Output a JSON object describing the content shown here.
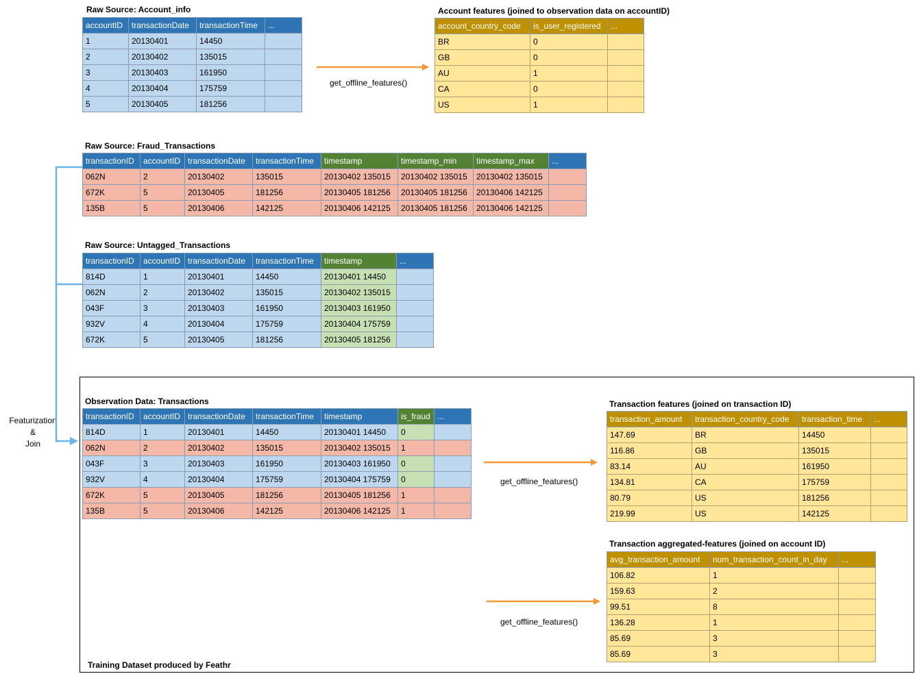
{
  "account_info": {
    "title": "Raw Source: Account_info",
    "headers": [
      "accountID",
      "transactionDate",
      "transactionTime",
      "..."
    ],
    "rows": [
      [
        "1",
        "20130401",
        "14450",
        ""
      ],
      [
        "2",
        "20130402",
        "135015",
        ""
      ],
      [
        "3",
        "20130403",
        "161950",
        ""
      ],
      [
        "4",
        "20130404",
        "175759",
        ""
      ],
      [
        "5",
        "20130405",
        "181256",
        ""
      ]
    ]
  },
  "account_features": {
    "title": "Account features (joined to observation data on accountID)",
    "headers": [
      "account_country_code",
      "is_user_registered",
      "..."
    ],
    "rows": [
      [
        "BR",
        "0",
        ""
      ],
      [
        "GB",
        "0",
        ""
      ],
      [
        "AU",
        "1",
        ""
      ],
      [
        "CA",
        "0",
        ""
      ],
      [
        "US",
        "1",
        ""
      ]
    ]
  },
  "fraud_transactions": {
    "title": "Raw Source: Fraud_Transactions",
    "headers": [
      "transactionID",
      "accountID",
      "transactionDate",
      "transactionTime",
      "timestamp",
      "timestamp_min",
      "timestamp_max",
      "..."
    ],
    "rows": [
      [
        "062N",
        "2",
        "20130402",
        "135015",
        "20130402 135015",
        "20130402 135015",
        "20130402 135015",
        ""
      ],
      [
        "672K",
        "5",
        "20130405",
        "181256",
        "20130405 181256",
        "20130405 181256",
        "20130406 142125",
        ""
      ],
      [
        "135B",
        "5",
        "20130406",
        "142125",
        "20130406 142125",
        "20130405 181256",
        "20130406 142125",
        ""
      ]
    ]
  },
  "untagged_transactions": {
    "title": "Raw Source: Untagged_Transactions",
    "headers": [
      "transactionID",
      "accountID",
      "transactionDate",
      "transactionTime",
      "timestamp",
      "..."
    ],
    "rows": [
      [
        "814D",
        "1",
        "20130401",
        "14450",
        "20130401 14450",
        ""
      ],
      [
        "062N",
        "2",
        "20130402",
        "135015",
        "20130402 135015",
        ""
      ],
      [
        "043F",
        "3",
        "20130403",
        "161950",
        "20130403 161950",
        ""
      ],
      [
        "932V",
        "4",
        "20130404",
        "175759",
        "20130404 175759",
        ""
      ],
      [
        "672K",
        "5",
        "20130405",
        "181256",
        "20130405 181256",
        ""
      ]
    ]
  },
  "observation": {
    "title": "Observation Data: Transactions",
    "headers": [
      "transactionID",
      "accountID",
      "transactionDate",
      "transactionTime",
      "timestamp",
      "is_fraud",
      "..."
    ],
    "rows": [
      [
        "814D",
        "1",
        "20130401",
        "14450",
        "20130401 14450",
        "0",
        ""
      ],
      [
        "062N",
        "2",
        "20130402",
        "135015",
        "20130402 135015",
        "1",
        ""
      ],
      [
        "043F",
        "3",
        "20130403",
        "161950",
        "20130403 161950",
        "0",
        ""
      ],
      [
        "932V",
        "4",
        "20130404",
        "175759",
        "20130404 175759",
        "0",
        ""
      ],
      [
        "672K",
        "5",
        "20130405",
        "181256",
        "20130405 181256",
        "1",
        ""
      ],
      [
        "135B",
        "5",
        "20130406",
        "142125",
        "20130406 142125",
        "1",
        ""
      ]
    ]
  },
  "transaction_features": {
    "title": "Transaction features (joined on transaction ID)",
    "headers": [
      "transaction_amount",
      "transaction_country_code",
      "transaction_time",
      "..."
    ],
    "rows": [
      [
        "147.69",
        "BR",
        "14450",
        ""
      ],
      [
        "116.86",
        "GB",
        "135015",
        ""
      ],
      [
        "83.14",
        "AU",
        "161950",
        ""
      ],
      [
        "134.81",
        "CA",
        "175759",
        ""
      ],
      [
        "80.79",
        "US",
        "181256",
        ""
      ],
      [
        "219.99",
        "US",
        "142125",
        ""
      ]
    ]
  },
  "aggregated_features": {
    "title": "Transaction aggregated-features (joined on account ID)",
    "headers": [
      "avg_transaction_amount",
      "num_transaction_count_in_day",
      "..."
    ],
    "rows": [
      [
        "106.82",
        "1",
        ""
      ],
      [
        "159.63",
        "2",
        ""
      ],
      [
        "99.51",
        "8",
        ""
      ],
      [
        "136.28",
        "1",
        ""
      ],
      [
        "85.69",
        "3",
        ""
      ],
      [
        "85.69",
        "3",
        ""
      ]
    ]
  },
  "labels": {
    "get_offline_1": "get_offline_features()",
    "get_offline_2": "get_offline_features()",
    "get_offline_3": "get_offline_features()",
    "featurization_line1": "Featurization",
    "featurization_line2": "&",
    "featurization_line3": "Join",
    "box_caption": "Training Dataset produced by Feathr"
  },
  "colors": {
    "blue_header": "#2e75b6",
    "green_header": "#548235",
    "gold_header": "#bf9000",
    "blue_row": "#bdd7ee",
    "red_row": "#f4b8a8",
    "green_cell": "#c6e0b4",
    "yellow_row": "#ffe699",
    "orange_arrow": "#f4993a",
    "light_blue_arrow": "#6ab4ea"
  }
}
